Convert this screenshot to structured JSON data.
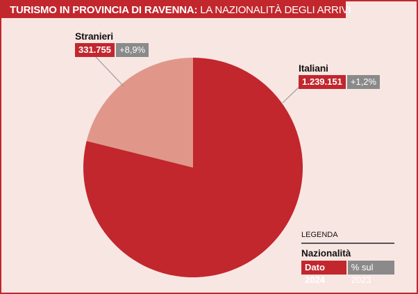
{
  "header": {
    "title": "TURISMO IN PROVINCIA DI RAVENNA:",
    "subtitle": "LA NAZIONALITÀ DEGLI ARRIVI"
  },
  "chart_data": {
    "type": "pie",
    "slices": [
      {
        "name": "Italiani",
        "value": 1239151,
        "value_label": "1.239.151",
        "change_label": "+1,2%",
        "color": "#c1272d"
      },
      {
        "name": "Stranieri",
        "value": 331755,
        "value_label": "331.755",
        "change_label": "+8,9%",
        "color": "#e0978a"
      }
    ],
    "start": "12 o'clock",
    "direction": "clockwise"
  },
  "legend": {
    "title": "LEGENDA",
    "heading": "Nazionalità",
    "value_key": "Dato 2024",
    "pct_key": "% sul 2023"
  },
  "colors": {
    "accent": "#c1272d",
    "secondary": "#e0978a",
    "badge_gray": "#8a8a8a",
    "background": "#f8e6e2"
  }
}
